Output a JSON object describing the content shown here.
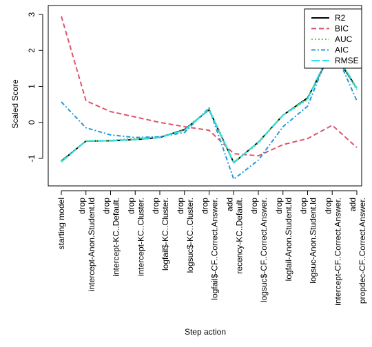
{
  "chart_data": {
    "type": "line",
    "xlabel": "Step action",
    "ylabel": "Scaled Score",
    "ylim": [
      -1.5,
      3.0
    ],
    "yticks": [
      -1,
      0,
      1,
      2,
      3
    ],
    "grid": false,
    "legend_position": "top-right",
    "categories": [
      [
        "starting model"
      ],
      [
        "drop",
        "intercept-Anon.Student.Id"
      ],
      [
        "drop",
        "intercept-KC..Default."
      ],
      [
        "drop",
        "intercept-KC..Cluster."
      ],
      [
        "drop",
        "logfail$-KC..Cluster."
      ],
      [
        "drop",
        "logsuc$-KC..Cluster."
      ],
      [
        "drop",
        "logfail$-CF..Correct.Answer."
      ],
      [
        "add",
        "recency-KC..Default."
      ],
      [
        "drop",
        "logsuc$-CF..Correct.Answer."
      ],
      [
        "drop",
        "logfail-Anon.Student.Id"
      ],
      [
        "drop",
        "logsuc-Anon.Student.Id"
      ],
      [
        "drop",
        "intercept-CF..Correct.Answer."
      ],
      [
        "add",
        "propdec-CF..Correct.Answer."
      ]
    ],
    "series": [
      {
        "name": "R2",
        "color": "#000000",
        "dash": "solid",
        "values": [
          -1.08,
          -0.52,
          -0.51,
          -0.48,
          -0.42,
          -0.2,
          0.35,
          -1.12,
          -0.55,
          0.2,
          0.68,
          2.0,
          0.95
        ]
      },
      {
        "name": "BIC",
        "color": "#DF536B",
        "dash": "dashed",
        "values": [
          2.95,
          0.6,
          0.3,
          0.15,
          0.0,
          -0.12,
          -0.22,
          -0.87,
          -0.93,
          -0.62,
          -0.45,
          -0.08,
          -0.7
        ]
      },
      {
        "name": "AUC",
        "color": "#61D04F",
        "dash": "dotted",
        "values": [
          -1.06,
          -0.52,
          -0.5,
          -0.45,
          -0.4,
          -0.22,
          0.38,
          -1.1,
          -0.58,
          0.2,
          0.63,
          2.05,
          0.9
        ]
      },
      {
        "name": "AIC",
        "color": "#2297E6",
        "dash": "dashdot",
        "values": [
          0.57,
          -0.15,
          -0.35,
          -0.42,
          -0.4,
          -0.28,
          0.4,
          -1.58,
          -1.05,
          -0.12,
          0.45,
          2.15,
          0.6
        ]
      },
      {
        "name": "RMSE",
        "color": "#28E2E5",
        "dash": "longdash",
        "values": [
          -1.1,
          -0.52,
          -0.51,
          -0.48,
          -0.42,
          -0.22,
          0.36,
          -1.12,
          -0.55,
          0.2,
          0.66,
          2.1,
          0.95
        ]
      }
    ]
  }
}
